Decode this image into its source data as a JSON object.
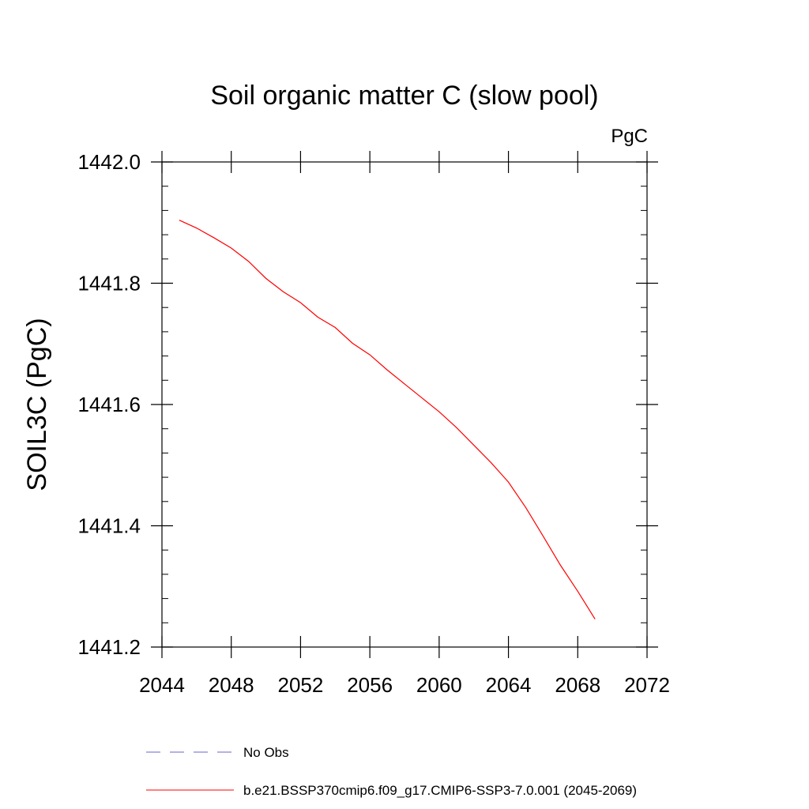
{
  "chart_data": {
    "type": "line",
    "title": "Soil organic matter C (slow pool)",
    "units_label": "PgC",
    "ylabel": "SOIL3C  (PgC)",
    "xlabel": "",
    "xlim": [
      2044,
      2072
    ],
    "ylim": [
      1441.2,
      1442.0
    ],
    "x_ticks": [
      2044,
      2048,
      2052,
      2056,
      2060,
      2064,
      2068,
      2072
    ],
    "x_tick_labels": [
      "2044",
      "2048",
      "2052",
      "2056",
      "2060",
      "2064",
      "2068",
      "2072"
    ],
    "y_ticks": [
      1441.2,
      1441.4,
      1441.6,
      1441.8,
      1442.0
    ],
    "y_tick_labels": [
      "1441.2",
      "1441.4",
      "1441.6",
      "1441.8",
      "1442.0"
    ],
    "grid": false,
    "legend_position": "bottom",
    "series": [
      {
        "name": "No Obs",
        "color": "#6666cc",
        "dash": "dashed",
        "x": [],
        "y": []
      },
      {
        "name": "b.e21.BSSP370cmip6.f09_g17.CMIP6-SSP3-7.0.001 (2045-2069)",
        "color": "#ff0000",
        "dash": "solid",
        "x": [
          2045,
          2046,
          2047,
          2048,
          2049,
          2050,
          2051,
          2052,
          2053,
          2054,
          2055,
          2056,
          2057,
          2058,
          2059,
          2060,
          2061,
          2062,
          2063,
          2064,
          2065,
          2066,
          2067,
          2068,
          2069
        ],
        "y": [
          1441.904,
          1441.891,
          1441.875,
          1441.858,
          1441.836,
          1441.808,
          1441.786,
          1441.768,
          1441.744,
          1441.727,
          1441.701,
          1441.682,
          1441.657,
          1441.634,
          1441.611,
          1441.588,
          1441.562,
          1441.533,
          1441.504,
          1441.472,
          1441.43,
          1441.383,
          1441.335,
          1441.292,
          1441.246
        ]
      }
    ]
  }
}
